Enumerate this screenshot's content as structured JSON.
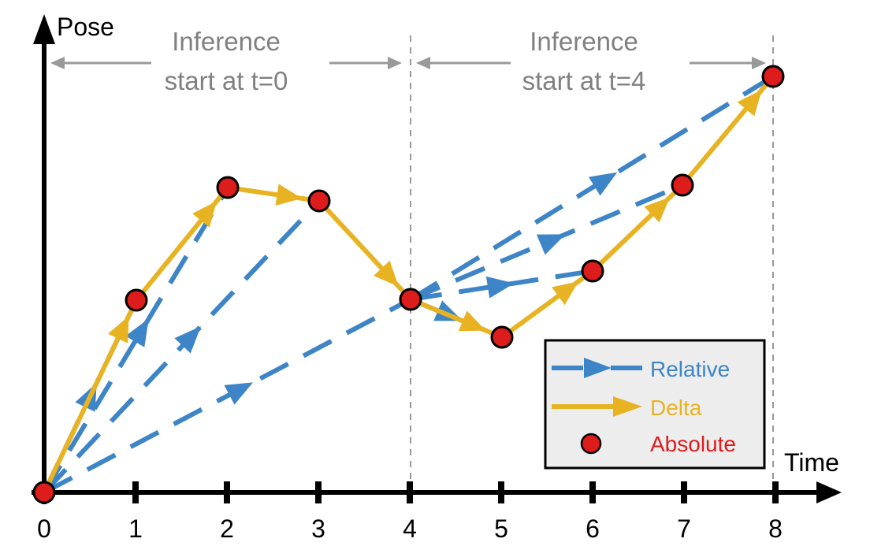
{
  "axes": {
    "y_label": "Pose",
    "x_label": "Time",
    "ticks": [
      "0",
      "1",
      "2",
      "3",
      "4",
      "5",
      "6",
      "7",
      "8"
    ]
  },
  "annotations": {
    "window1_line1": "Inference",
    "window1_line2": "start at t=0",
    "window2_line1": "Inference",
    "window2_line2": "start at t=4"
  },
  "legend": {
    "relative": "Relative",
    "delta": "Delta",
    "absolute": "Absolute"
  },
  "colors": {
    "relative": "#3d85c6",
    "delta": "#e8b323",
    "absolute": "#dd1c1c",
    "annotation": "#999999"
  }
}
